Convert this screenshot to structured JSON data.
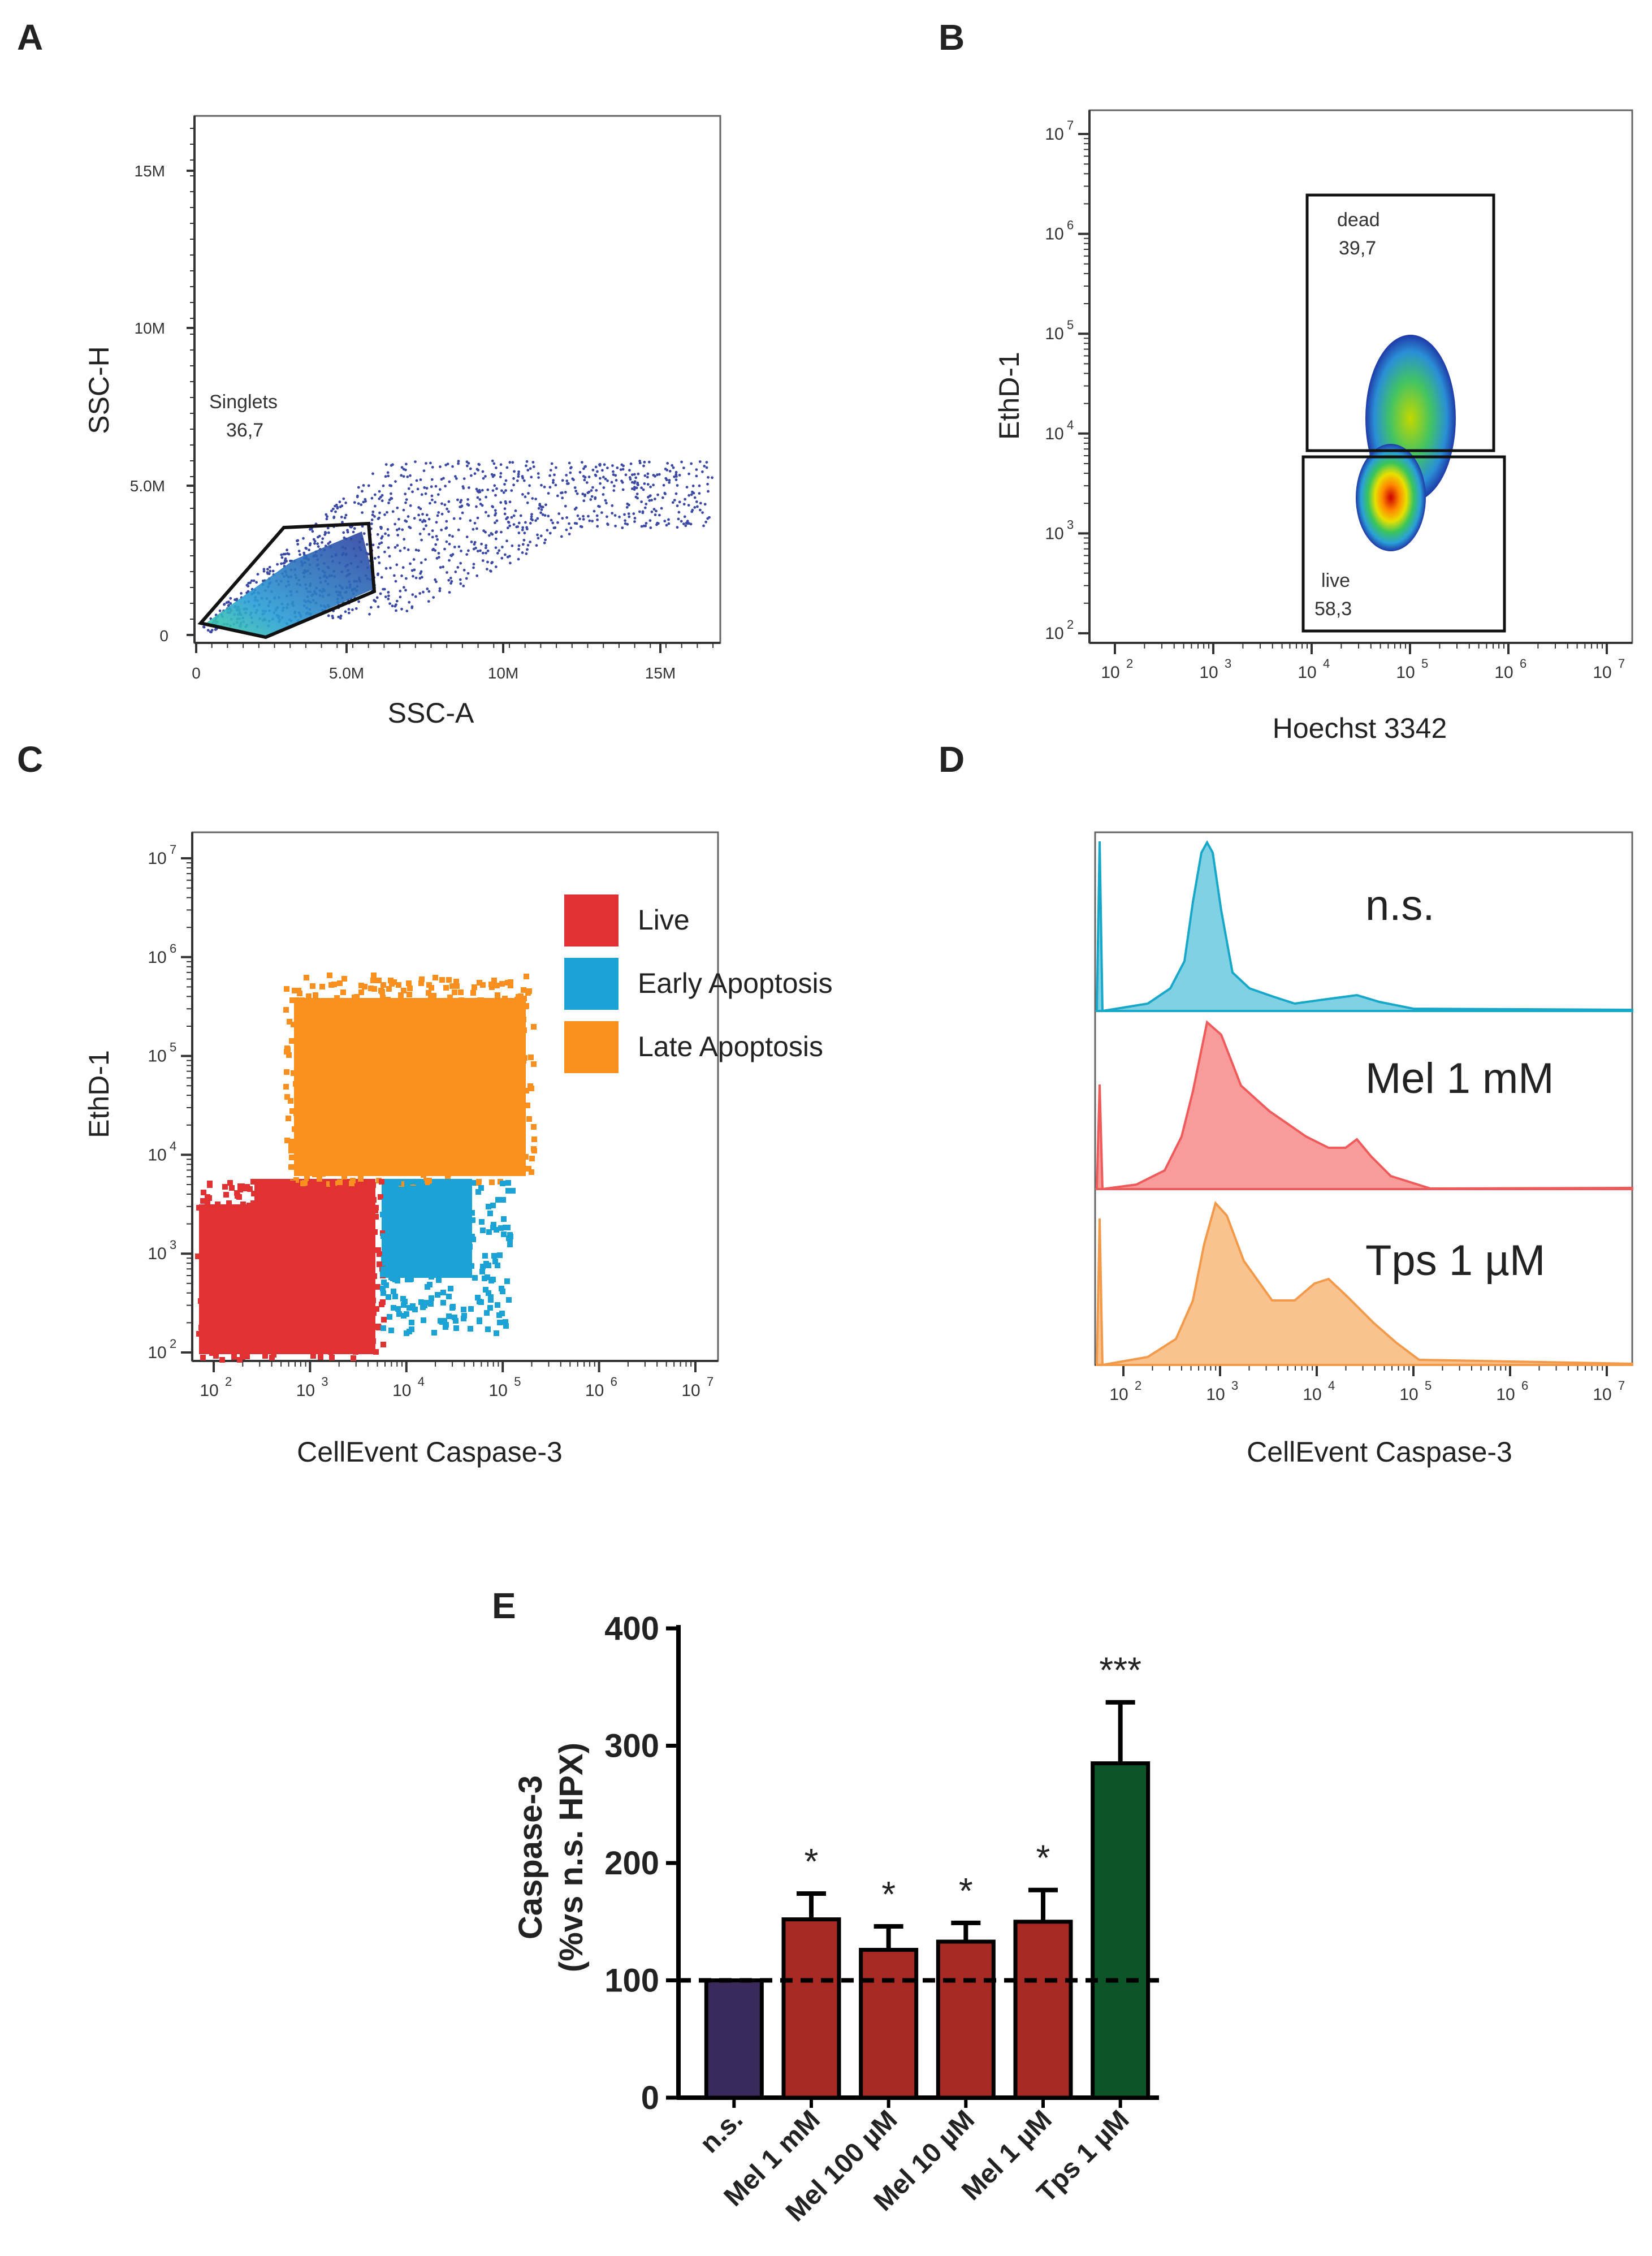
{
  "panels": {
    "A": "A",
    "B": "B",
    "C": "C",
    "D": "D",
    "E": "E"
  },
  "panel_a": {
    "xlabel": "SSC-A",
    "ylabel": "SSC-H",
    "x_ticks": [
      "0",
      "5.0M",
      "10M",
      "15M"
    ],
    "y_ticks": [
      "0",
      "5.0M",
      "10M",
      "15M"
    ],
    "gate_name": "Singlets",
    "gate_value": "36,7"
  },
  "panel_b": {
    "xlabel": "Hoechst 3342",
    "ylabel": "EthD-1",
    "x_ticks": [
      "2",
      "3",
      "4",
      "5",
      "6",
      "7"
    ],
    "y_ticks": [
      "2",
      "3",
      "4",
      "5",
      "6",
      "7"
    ],
    "log_base": "10",
    "gate_dead_name": "dead",
    "gate_dead_value": "39,7",
    "gate_live_name": "live",
    "gate_live_value": "58,3"
  },
  "panel_c": {
    "xlabel": "CellEvent Caspase-3",
    "ylabel": "EthD-1",
    "x_ticks": [
      "2",
      "3",
      "4",
      "5",
      "6",
      "7"
    ],
    "y_ticks": [
      "2",
      "3",
      "4",
      "5",
      "6",
      "7"
    ],
    "log_base": "10",
    "legend": [
      {
        "label": "Live",
        "color": "#e03232"
      },
      {
        "label": "Early Apoptosis",
        "color": "#1aa3d4"
      },
      {
        "label": "Late Apoptosis",
        "color": "#f98f1e"
      }
    ]
  },
  "panel_d": {
    "xlabel": "CellEvent Caspase-3",
    "x_ticks": [
      "2",
      "3",
      "4",
      "5",
      "6",
      "7"
    ],
    "log_base": "10",
    "histograms": [
      {
        "label": "n.s.",
        "color": "#17a7c9",
        "fill": "#7fd1e3"
      },
      {
        "label": "Mel 1 mM",
        "color": "#ef5a5a",
        "fill": "#f79b9b"
      },
      {
        "label": "Tps 1 µM",
        "color": "#f29a4a",
        "fill": "#f9c38f"
      }
    ]
  },
  "chart_data": {
    "type": "bar",
    "title": "",
    "xlabel": "",
    "ylabel_line1": "Caspase-3",
    "ylabel_line2": "(%vs n.s. HPX)",
    "ylim": [
      0,
      400
    ],
    "y_ticks": [
      "0",
      "100",
      "200",
      "300",
      "400"
    ],
    "reference_line": 100,
    "categories": [
      "n.s.",
      "Mel 1 mM",
      "Mel 100 µM",
      "Mel 10 µM",
      "Mel 1 µM",
      "Tps 1 µM"
    ],
    "values": [
      100,
      152,
      126,
      133,
      150,
      285
    ],
    "errors": [
      0,
      22,
      20,
      16,
      27,
      52
    ],
    "significance": [
      "",
      "*",
      "*",
      "*",
      "*",
      "***"
    ],
    "colors": [
      "#3a2a5c",
      "#a82822",
      "#a82822",
      "#a82822",
      "#a82822",
      "#0b5529"
    ]
  }
}
